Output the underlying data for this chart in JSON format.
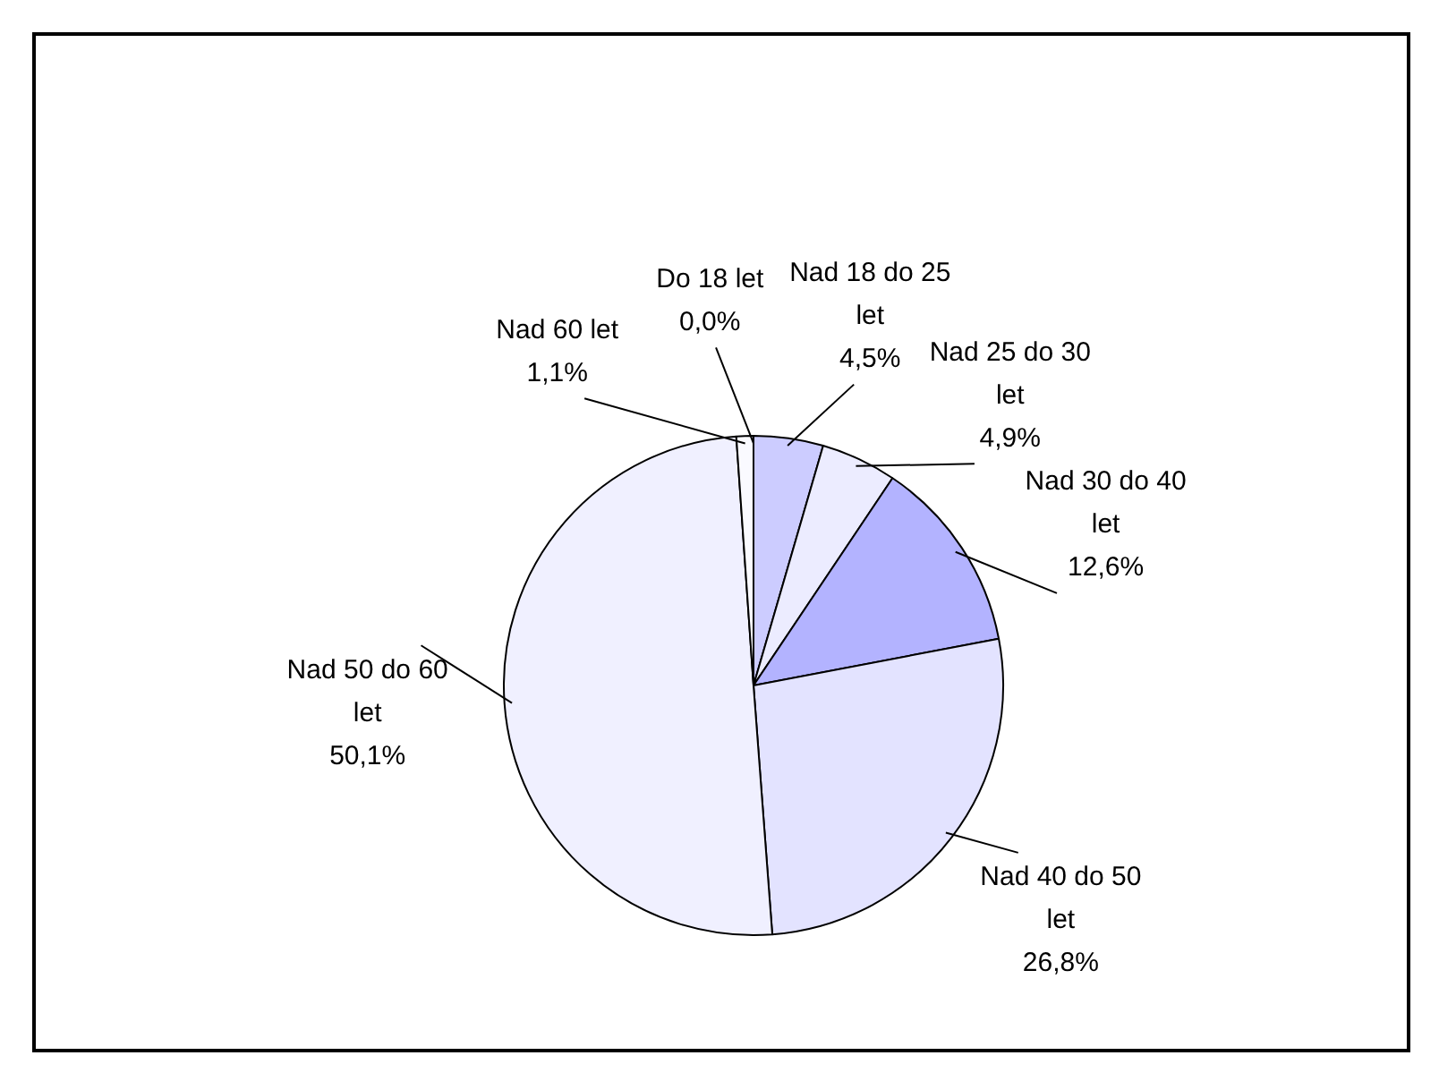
{
  "chart_data": {
    "type": "pie",
    "categories": [
      "Do 18 let",
      "Nad 18 do 25 let",
      "Nad 25 do 30 let",
      "Nad 30 do 40 let",
      "Nad 40 do 50 let",
      "Nad 50 do 60 let",
      "Nad 60 let"
    ],
    "values": [
      0.0,
      4.5,
      4.9,
      12.6,
      26.8,
      50.1,
      1.1
    ],
    "value_labels": [
      "0,0%",
      "4,5%",
      "4,9%",
      "12,6%",
      "26,8%",
      "50,1%",
      "1,1%"
    ],
    "colors": [
      "#9999ff",
      "#ccccff",
      "#ececff",
      "#b3b3ff",
      "#e3e3ff",
      "#f0f0ff",
      "#fafaff"
    ],
    "legend": false
  }
}
